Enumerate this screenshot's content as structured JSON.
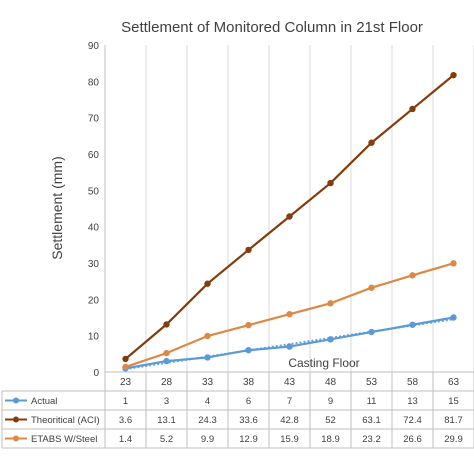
{
  "chart_data": {
    "type": "line",
    "title": "Settlement of Monitored Column in 21st Floor",
    "xlabel": "Casting Floor",
    "ylabel": "Settlement (mm)",
    "ylim": [
      0,
      90
    ],
    "yticks": [
      0,
      10,
      20,
      30,
      40,
      50,
      60,
      70,
      80,
      90
    ],
    "grid": "vertical",
    "legend": "data-table-below",
    "categories": [
      "23",
      "28",
      "33",
      "38",
      "43",
      "48",
      "53",
      "58",
      "63"
    ],
    "series": [
      {
        "name": "Actual",
        "color": "#5b9bd5",
        "trendline": true,
        "values": [
          1,
          3,
          4,
          6,
          7,
          9,
          11,
          13,
          15
        ],
        "labels": [
          "1",
          "3",
          "4",
          "6",
          "7",
          "9",
          "11",
          "13",
          "15"
        ]
      },
      {
        "name": "Theoritical (ACI)",
        "color": "#843c0c",
        "values": [
          3.6,
          13.1,
          24.3,
          33.6,
          42.8,
          52,
          63.1,
          72.4,
          81.7
        ],
        "labels": [
          "3.6",
          "13.1",
          "24.3",
          "33.6",
          "42.8",
          "52",
          "63.1",
          "72.4",
          "81.7"
        ]
      },
      {
        "name": "ETABS W/Steel",
        "color": "#dd8847",
        "values": [
          1.4,
          5.2,
          9.9,
          12.9,
          15.9,
          18.9,
          23.2,
          26.6,
          29.9
        ],
        "labels": [
          "1.4",
          "5.2",
          "9.9",
          "12.9",
          "15.9",
          "18.9",
          "23.2",
          "26.6",
          "29.9"
        ]
      }
    ]
  }
}
